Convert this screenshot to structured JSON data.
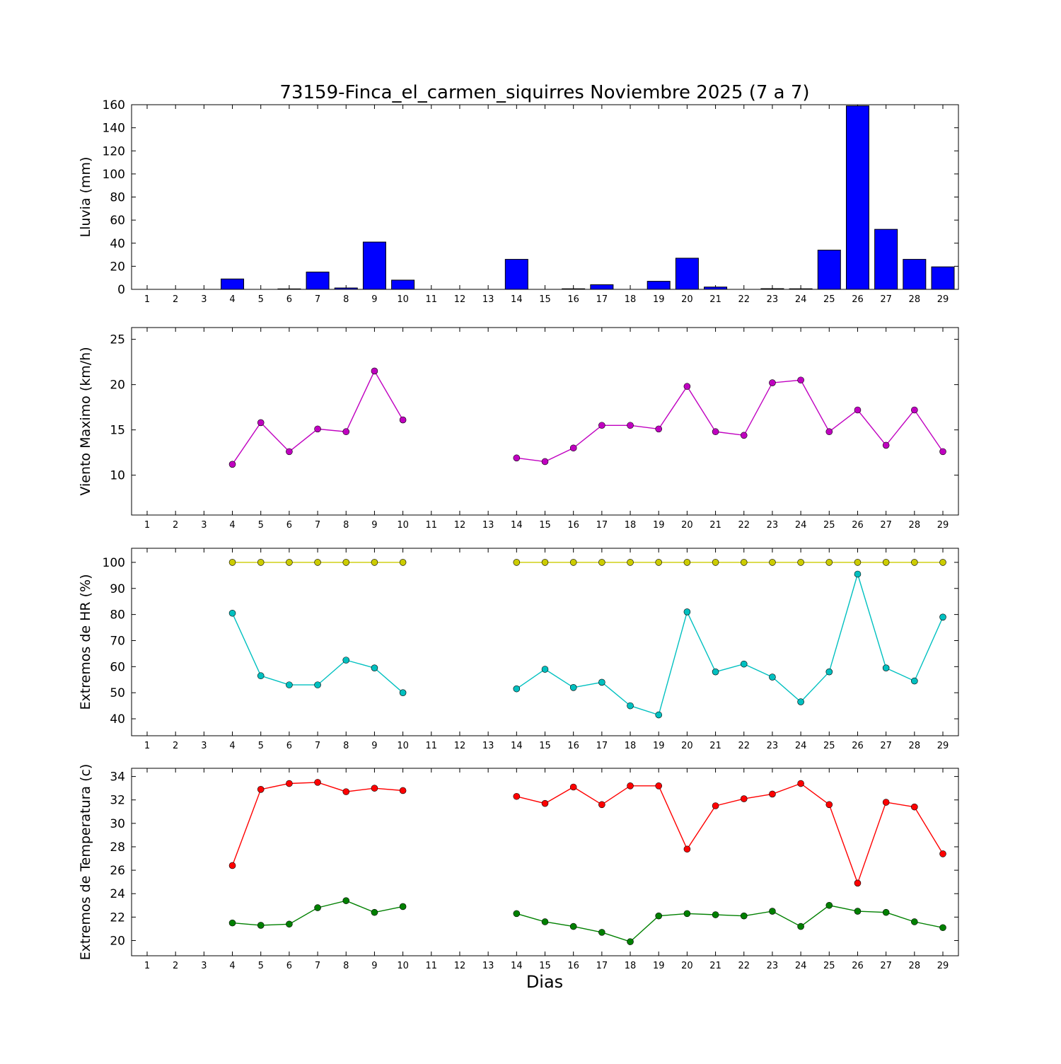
{
  "figure": {
    "title": "73159-Finca_el_carmen_siquirres Noviembre 2025  (7 a 7)",
    "xlabel": "Dias",
    "background": "#ffffff",
    "frame_color": "#000000"
  },
  "days": [
    1,
    2,
    3,
    4,
    5,
    6,
    7,
    8,
    9,
    10,
    11,
    12,
    13,
    14,
    15,
    16,
    17,
    18,
    19,
    20,
    21,
    22,
    23,
    24,
    25,
    26,
    27,
    28,
    29
  ],
  "chart_data": [
    {
      "type": "bar",
      "name": "lluvia",
      "ylabel": "Lluvia (mm)",
      "color": "#0000ff",
      "categories": [
        1,
        2,
        3,
        4,
        5,
        6,
        7,
        8,
        9,
        10,
        11,
        12,
        13,
        14,
        15,
        16,
        17,
        18,
        19,
        20,
        21,
        22,
        23,
        24,
        25,
        26,
        27,
        28,
        29
      ],
      "values": [
        0,
        0,
        0,
        9,
        0,
        0.4,
        15,
        1.2,
        41,
        8,
        0,
        0,
        0,
        26,
        0,
        0.5,
        4,
        0,
        7,
        27,
        2,
        0,
        0.6,
        0.5,
        34,
        159,
        52,
        26,
        19.5
      ],
      "ylim": [
        0,
        160
      ],
      "yticks": [
        0,
        20,
        40,
        60,
        80,
        100,
        120,
        140,
        160
      ]
    },
    {
      "type": "line",
      "name": "viento",
      "ylabel": "Viento Maximo (km/h)",
      "ylim": [
        5.6,
        26.3
      ],
      "yticks": [
        10,
        15,
        20,
        25
      ],
      "series": [
        {
          "name": "viento-maximo",
          "color": "#c000c0",
          "x": [
            4,
            5,
            6,
            7,
            8,
            9,
            10,
            14,
            15,
            16,
            17,
            18,
            19,
            20,
            21,
            22,
            23,
            24,
            25,
            26,
            27,
            28,
            29
          ],
          "values": [
            11.2,
            15.8,
            12.6,
            15.1,
            14.8,
            21.5,
            16.1,
            11.9,
            11.5,
            13.0,
            15.5,
            15.5,
            15.1,
            19.8,
            14.8,
            14.4,
            20.2,
            20.5,
            14.8,
            17.2,
            13.3,
            17.2,
            12.6
          ]
        }
      ]
    },
    {
      "type": "line",
      "name": "hr",
      "ylabel": "Extremos de HR (%)",
      "ylim": [
        33.5,
        105.4
      ],
      "yticks": [
        40,
        50,
        60,
        70,
        80,
        90,
        100
      ],
      "series": [
        {
          "name": "hr-maxima",
          "color": "#cccc00",
          "x": [
            4,
            5,
            6,
            7,
            8,
            9,
            10,
            14,
            15,
            16,
            17,
            18,
            19,
            20,
            21,
            22,
            23,
            24,
            25,
            26,
            27,
            28,
            29
          ],
          "values": [
            100,
            100,
            100,
            100,
            100,
            100,
            100,
            100,
            100,
            100,
            100,
            100,
            100,
            100,
            100,
            100,
            100,
            100,
            100,
            100,
            100,
            100,
            100
          ]
        },
        {
          "name": "hr-minima",
          "color": "#00c0c0",
          "x": [
            4,
            5,
            6,
            7,
            8,
            9,
            10,
            14,
            15,
            16,
            17,
            18,
            19,
            20,
            21,
            22,
            23,
            24,
            25,
            26,
            27,
            28,
            29
          ],
          "values": [
            80.5,
            56.5,
            53,
            53,
            62.5,
            59.5,
            50,
            51.5,
            59,
            52,
            54,
            45,
            41.5,
            81,
            58,
            61,
            56,
            46.5,
            58,
            95.5,
            59.5,
            54.5,
            79
          ]
        }
      ]
    },
    {
      "type": "line",
      "name": "temperatura",
      "ylabel": "Extremos de Temperatura (c)",
      "ylim": [
        18.7,
        34.7
      ],
      "yticks": [
        20,
        22,
        24,
        26,
        28,
        30,
        32,
        34
      ],
      "series": [
        {
          "name": "temp-maxima",
          "color": "#ff0000",
          "x": [
            4,
            5,
            6,
            7,
            8,
            9,
            10,
            14,
            15,
            16,
            17,
            18,
            19,
            20,
            21,
            22,
            23,
            24,
            25,
            26,
            27,
            28,
            29
          ],
          "values": [
            26.4,
            32.9,
            33.4,
            33.5,
            32.7,
            33.0,
            32.8,
            32.3,
            31.7,
            33.1,
            31.6,
            33.2,
            33.2,
            27.8,
            31.5,
            32.1,
            32.5,
            33.4,
            31.6,
            24.9,
            31.8,
            31.4,
            27.4
          ]
        },
        {
          "name": "temp-minima",
          "color": "#008000",
          "x": [
            4,
            5,
            6,
            7,
            8,
            9,
            10,
            14,
            15,
            16,
            17,
            18,
            19,
            20,
            21,
            22,
            23,
            24,
            25,
            26,
            27,
            28,
            29
          ],
          "values": [
            21.5,
            21.3,
            21.4,
            22.8,
            23.4,
            22.4,
            22.9,
            22.3,
            21.6,
            21.2,
            20.7,
            19.9,
            22.1,
            22.3,
            22.2,
            22.1,
            22.5,
            21.2,
            23.0,
            22.5,
            22.4,
            21.6,
            21.1
          ]
        }
      ]
    }
  ]
}
